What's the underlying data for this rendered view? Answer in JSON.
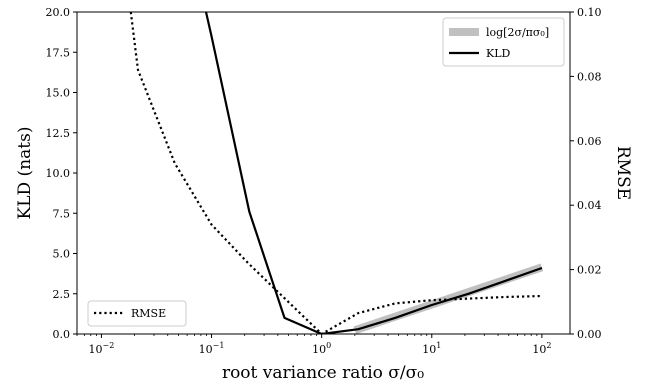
{
  "chart_data": {
    "type": "line",
    "xscale": "log",
    "x_range": [
      0.006,
      180
    ],
    "x_ticks": [
      {
        "value": 0.01,
        "base": "10",
        "exp": "−2"
      },
      {
        "value": 0.1,
        "base": "10",
        "exp": "−1"
      },
      {
        "value": 1,
        "base": "10",
        "exp": "0"
      },
      {
        "value": 10,
        "base": "10",
        "exp": "1"
      },
      {
        "value": 100,
        "base": "10",
        "exp": "2"
      }
    ],
    "xlabel": "root variance ratio σ/σ₀",
    "ylabel_left": "KLD (nats)",
    "ylabel_right": "RMSE",
    "ylim_left": [
      0,
      20
    ],
    "ylim_right": [
      0,
      0.1
    ],
    "yticks_left": [
      "0.0",
      "2.5",
      "5.0",
      "7.5",
      "10.0",
      "12.5",
      "15.0",
      "17.5",
      "20.0"
    ],
    "yticks_right": [
      "0.00",
      "0.02",
      "0.04",
      "0.06",
      "0.08",
      "0.10"
    ],
    "grid": false,
    "series": [
      {
        "name": "log[2σ/πσ₀]",
        "axis": "left",
        "color": "#c0c0c0",
        "style": "thick-solid",
        "x": [
          2,
          5,
          10,
          20,
          50,
          100
        ],
        "y": [
          0.23,
          1.15,
          1.84,
          2.53,
          3.45,
          4.14
        ]
      },
      {
        "name": "KLD",
        "axis": "left",
        "color": "#000000",
        "style": "solid",
        "x": [
          0.089,
          0.1,
          0.22,
          0.46,
          1,
          2.15,
          4.64,
          10,
          21.5,
          46.4,
          100
        ],
        "y": [
          20.0,
          18.5,
          7.6,
          1.0,
          0.0,
          0.3,
          1.0,
          1.8,
          2.5,
          3.3,
          4.1
        ]
      },
      {
        "name": "RMSE",
        "axis": "right",
        "color": "#000000",
        "style": "dotted",
        "x": [
          0.0185,
          0.0215,
          0.0464,
          0.1,
          0.215,
          0.464,
          1,
          2.15,
          4.64,
          10,
          21.5,
          46.4,
          100
        ],
        "y": [
          0.1,
          0.082,
          0.053,
          0.034,
          0.022,
          0.011,
          0.0,
          0.0065,
          0.0095,
          0.0105,
          0.011,
          0.0115,
          0.0118
        ]
      }
    ],
    "legends": [
      {
        "position": "top-right",
        "entries": [
          "log[2σ/πσ₀]",
          "KLD"
        ]
      },
      {
        "position": "bottom-left",
        "entries": [
          "RMSE"
        ]
      }
    ]
  }
}
